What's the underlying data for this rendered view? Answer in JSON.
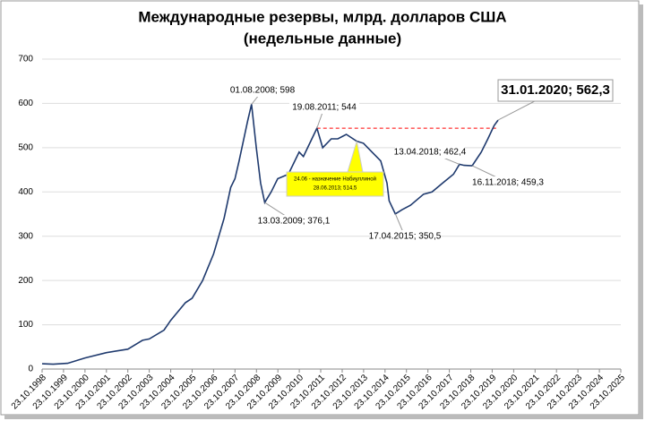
{
  "chart_data": {
    "type": "line",
    "title": [
      "Международные резервы, млрд. долларов США",
      "(недельные данные)"
    ],
    "x": [
      "23.10.1998",
      "01.05.1999",
      "01.01.2000",
      "23.10.2000",
      "23.10.2001",
      "23.10.2002",
      "01.07.2003",
      "23.10.2003",
      "01.07.2004",
      "23.10.2004",
      "01.07.2005",
      "23.10.2005",
      "20.04.2006",
      "23.10.2006",
      "20.04.2007",
      "10.08.2007",
      "23.10.2007",
      "01.01.2008",
      "25.05.2008",
      "01.08.2008",
      "20.10.2008",
      "01.01.2009",
      "13.03.2009",
      "01.07.2009",
      "20.10.2009",
      "20.04.2010",
      "20.10.2010",
      "01.01.2011",
      "19.08.2011",
      "25.11.2011",
      "20.04.2012",
      "10.08.2012",
      "01.01.2013",
      "28.06.2013",
      "20.10.2013",
      "15.03.2014",
      "10.08.2014",
      "25.11.2014",
      "01.01.2015",
      "17.04.2015",
      "10.08.2015",
      "01.01.2016",
      "10.08.2016",
      "01.01.2017",
      "01.07.2017",
      "01.01.2018",
      "13.04.2018",
      "01.07.2018",
      "16.11.2018",
      "20.04.2019",
      "10.08.2019",
      "25.11.2019",
      "31.01.2020"
    ],
    "series": [
      {
        "name": "Международные резервы",
        "color": "#1f3a6e",
        "values": [
          12,
          11,
          13,
          25,
          37,
          45,
          65,
          68,
          88,
          110,
          150,
          160,
          200,
          260,
          340,
          410,
          430,
          470,
          560,
          598,
          500,
          420,
          376.1,
          400,
          430,
          440,
          490,
          480,
          544,
          500,
          520,
          520,
          530,
          514.5,
          510,
          490,
          470,
          420,
          380,
          350.5,
          360,
          370,
          395,
          400,
          420,
          440,
          462.4,
          460,
          459.3,
          490,
          520,
          550,
          562.3
        ]
      }
    ],
    "xlim": [
      "23.10.1998",
      "23.10.2025"
    ],
    "xticks": [
      "23.10.1998",
      "23.10.1999",
      "23.10.2000",
      "23.10.2001",
      "23.10.2002",
      "23.10.2003",
      "23.10.2004",
      "23.10.2005",
      "23.10.2006",
      "23.10.2007",
      "23.10.2008",
      "23.10.2009",
      "23.10.2010",
      "23.10.2011",
      "23.10.2012",
      "23.10.2013",
      "23.10.2014",
      "23.10.2015",
      "23.10.2016",
      "23.10.2017",
      "23.10.2018",
      "23.10.2019",
      "23.10.2020",
      "23.10.2021",
      "23.10.2022",
      "23.10.2023",
      "23.10.2024",
      "23.10.2025"
    ],
    "ylim": [
      0,
      700
    ],
    "yticks": [
      0,
      100,
      200,
      300,
      400,
      500,
      600,
      700
    ],
    "grid": true,
    "reference_line": {
      "value": 544,
      "from": "19.08.2011",
      "to": "31.01.2020",
      "color": "#ff0000"
    },
    "annotations": [
      "01.08.2008; 598",
      "13.03.2009; 376,1",
      "19.08.2011; 544",
      [
        "24.06 - назначение Набиуллиной",
        "28.06.2013; 514,5"
      ],
      "17.04.2015; 350,5",
      "13.04.2018; 462,4",
      "16.11.2018; 459,3",
      "31.01.2020; 562,3"
    ]
  }
}
